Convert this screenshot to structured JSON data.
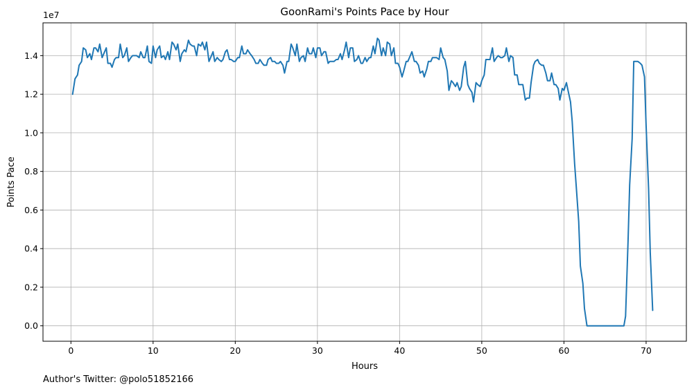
{
  "chart_data": {
    "type": "line",
    "title": "GoonRami's Points Pace by Hour",
    "xlabel": "Hours",
    "ylabel": "Points Pace",
    "offset_text": "1e7",
    "footer": "Author's Twitter: @polo51852166",
    "xlim": [
      -3.4,
      74.9
    ],
    "ylim": [
      -800000,
      15700000
    ],
    "x_ticks": [
      0,
      10,
      20,
      30,
      40,
      50,
      60,
      70
    ],
    "x_tick_labels": [
      "0",
      "10",
      "20",
      "30",
      "40",
      "50",
      "60",
      "70"
    ],
    "y_ticks": [
      0,
      2000000,
      4000000,
      6000000,
      8000000,
      10000000,
      12000000,
      14000000
    ],
    "y_tick_labels": [
      "0.0",
      "0.2",
      "0.4",
      "0.6",
      "0.8",
      "1.0",
      "1.2",
      "1.4"
    ],
    "grid": true,
    "line_color": "#1f77b4",
    "series": [
      {
        "points": [
          [
            0.2,
            12000000
          ],
          [
            0.5,
            12800000
          ],
          [
            0.8,
            13000000
          ],
          [
            1.0,
            13500000
          ],
          [
            1.3,
            13700000
          ],
          [
            1.5,
            14400000
          ],
          [
            1.8,
            14300000
          ],
          [
            2.0,
            13900000
          ],
          [
            2.3,
            14100000
          ],
          [
            2.5,
            13800000
          ],
          [
            2.8,
            14400000
          ],
          [
            3.0,
            14400000
          ],
          [
            3.3,
            14200000
          ],
          [
            3.5,
            14600000
          ],
          [
            3.8,
            13900000
          ],
          [
            4.0,
            14100000
          ],
          [
            4.3,
            14400000
          ],
          [
            4.5,
            13600000
          ],
          [
            4.8,
            13600000
          ],
          [
            5.0,
            13400000
          ],
          [
            5.3,
            13800000
          ],
          [
            5.5,
            13900000
          ],
          [
            5.8,
            13900000
          ],
          [
            6.0,
            14600000
          ],
          [
            6.3,
            13900000
          ],
          [
            6.5,
            14000000
          ],
          [
            6.8,
            14400000
          ],
          [
            7.0,
            13700000
          ],
          [
            7.3,
            13900000
          ],
          [
            7.5,
            14000000
          ],
          [
            8.0,
            14000000
          ],
          [
            8.3,
            13900000
          ],
          [
            8.5,
            14200000
          ],
          [
            8.8,
            13900000
          ],
          [
            9.0,
            13900000
          ],
          [
            9.3,
            14500000
          ],
          [
            9.5,
            13700000
          ],
          [
            9.8,
            13600000
          ],
          [
            10.0,
            14500000
          ],
          [
            10.3,
            13900000
          ],
          [
            10.5,
            14300000
          ],
          [
            10.8,
            14500000
          ],
          [
            11.0,
            13900000
          ],
          [
            11.3,
            14000000
          ],
          [
            11.5,
            13800000
          ],
          [
            11.8,
            14200000
          ],
          [
            12.0,
            13800000
          ],
          [
            12.3,
            14700000
          ],
          [
            12.5,
            14600000
          ],
          [
            12.8,
            14300000
          ],
          [
            13.0,
            14600000
          ],
          [
            13.3,
            13700000
          ],
          [
            13.5,
            14100000
          ],
          [
            13.8,
            14300000
          ],
          [
            14.0,
            14200000
          ],
          [
            14.3,
            14800000
          ],
          [
            14.5,
            14600000
          ],
          [
            14.8,
            14500000
          ],
          [
            15.0,
            14500000
          ],
          [
            15.3,
            14000000
          ],
          [
            15.5,
            14600000
          ],
          [
            15.8,
            14500000
          ],
          [
            16.0,
            14700000
          ],
          [
            16.3,
            14300000
          ],
          [
            16.5,
            14700000
          ],
          [
            16.8,
            13700000
          ],
          [
            17.0,
            13900000
          ],
          [
            17.3,
            14200000
          ],
          [
            17.5,
            13700000
          ],
          [
            17.8,
            13900000
          ],
          [
            18.0,
            13800000
          ],
          [
            18.3,
            13700000
          ],
          [
            18.5,
            13800000
          ],
          [
            18.8,
            14200000
          ],
          [
            19.0,
            14300000
          ],
          [
            19.3,
            13800000
          ],
          [
            19.5,
            13800000
          ],
          [
            19.8,
            13700000
          ],
          [
            20.0,
            13700000
          ],
          [
            20.3,
            13900000
          ],
          [
            20.5,
            13900000
          ],
          [
            20.8,
            14500000
          ],
          [
            21.0,
            14100000
          ],
          [
            21.3,
            14100000
          ],
          [
            21.5,
            14300000
          ],
          [
            21.8,
            14100000
          ],
          [
            22.0,
            14000000
          ],
          [
            22.3,
            13800000
          ],
          [
            22.5,
            13600000
          ],
          [
            22.8,
            13600000
          ],
          [
            23.0,
            13800000
          ],
          [
            23.3,
            13600000
          ],
          [
            23.5,
            13500000
          ],
          [
            23.8,
            13500000
          ],
          [
            24.0,
            13800000
          ],
          [
            24.3,
            13900000
          ],
          [
            24.5,
            13700000
          ],
          [
            24.8,
            13700000
          ],
          [
            25.0,
            13600000
          ],
          [
            25.3,
            13600000
          ],
          [
            25.5,
            13700000
          ],
          [
            25.8,
            13500000
          ],
          [
            26.0,
            13100000
          ],
          [
            26.3,
            13700000
          ],
          [
            26.5,
            13700000
          ],
          [
            26.8,
            14600000
          ],
          [
            27.0,
            14400000
          ],
          [
            27.3,
            14000000
          ],
          [
            27.5,
            14600000
          ],
          [
            27.8,
            13700000
          ],
          [
            28.0,
            13900000
          ],
          [
            28.3,
            14000000
          ],
          [
            28.5,
            13700000
          ],
          [
            28.8,
            14400000
          ],
          [
            29.0,
            14100000
          ],
          [
            29.3,
            14100000
          ],
          [
            29.5,
            14400000
          ],
          [
            29.8,
            13900000
          ],
          [
            30.0,
            14400000
          ],
          [
            30.3,
            14400000
          ],
          [
            30.5,
            14000000
          ],
          [
            30.8,
            14200000
          ],
          [
            31.0,
            14200000
          ],
          [
            31.3,
            13600000
          ],
          [
            31.5,
            13700000
          ],
          [
            31.8,
            13700000
          ],
          [
            32.0,
            13700000
          ],
          [
            32.3,
            13800000
          ],
          [
            32.5,
            13800000
          ],
          [
            32.8,
            14100000
          ],
          [
            33.0,
            13800000
          ],
          [
            33.3,
            14300000
          ],
          [
            33.5,
            14700000
          ],
          [
            33.8,
            13900000
          ],
          [
            34.0,
            14400000
          ],
          [
            34.3,
            14400000
          ],
          [
            34.5,
            13700000
          ],
          [
            34.8,
            13800000
          ],
          [
            35.0,
            14000000
          ],
          [
            35.3,
            13600000
          ],
          [
            35.5,
            13600000
          ],
          [
            35.8,
            13900000
          ],
          [
            36.0,
            13700000
          ],
          [
            36.3,
            13900000
          ],
          [
            36.5,
            13900000
          ],
          [
            36.8,
            14500000
          ],
          [
            37.0,
            14100000
          ],
          [
            37.3,
            14900000
          ],
          [
            37.5,
            14800000
          ],
          [
            37.8,
            14000000
          ],
          [
            38.0,
            14400000
          ],
          [
            38.3,
            14000000
          ],
          [
            38.5,
            14700000
          ],
          [
            38.8,
            14600000
          ],
          [
            39.0,
            14000000
          ],
          [
            39.3,
            14400000
          ],
          [
            39.5,
            13600000
          ],
          [
            39.8,
            13600000
          ],
          [
            40.0,
            13400000
          ],
          [
            40.3,
            12900000
          ],
          [
            40.5,
            13200000
          ],
          [
            40.8,
            13700000
          ],
          [
            41.0,
            13700000
          ],
          [
            41.3,
            14000000
          ],
          [
            41.5,
            14200000
          ],
          [
            41.8,
            13700000
          ],
          [
            42.0,
            13700000
          ],
          [
            42.3,
            13500000
          ],
          [
            42.5,
            13100000
          ],
          [
            42.8,
            13200000
          ],
          [
            43.0,
            12900000
          ],
          [
            43.3,
            13300000
          ],
          [
            43.5,
            13700000
          ],
          [
            43.8,
            13700000
          ],
          [
            44.0,
            13900000
          ],
          [
            44.3,
            13900000
          ],
          [
            44.5,
            13900000
          ],
          [
            44.8,
            13800000
          ],
          [
            45.0,
            14400000
          ],
          [
            45.3,
            13900000
          ],
          [
            45.5,
            13800000
          ],
          [
            45.8,
            13200000
          ],
          [
            46.0,
            12200000
          ],
          [
            46.3,
            12700000
          ],
          [
            46.5,
            12600000
          ],
          [
            46.8,
            12400000
          ],
          [
            47.0,
            12600000
          ],
          [
            47.3,
            12200000
          ],
          [
            47.5,
            12400000
          ],
          [
            47.8,
            13400000
          ],
          [
            48.0,
            13700000
          ],
          [
            48.3,
            12500000
          ],
          [
            48.5,
            12300000
          ],
          [
            48.8,
            12100000
          ],
          [
            49.0,
            11600000
          ],
          [
            49.3,
            12600000
          ],
          [
            49.5,
            12500000
          ],
          [
            49.8,
            12400000
          ],
          [
            50.0,
            12700000
          ],
          [
            50.3,
            13000000
          ],
          [
            50.5,
            13800000
          ],
          [
            50.8,
            13800000
          ],
          [
            51.0,
            13800000
          ],
          [
            51.3,
            14400000
          ],
          [
            51.5,
            13700000
          ],
          [
            51.8,
            13900000
          ],
          [
            52.0,
            14000000
          ],
          [
            52.3,
            13900000
          ],
          [
            52.5,
            13900000
          ],
          [
            52.8,
            14000000
          ],
          [
            53.0,
            14400000
          ],
          [
            53.3,
            13700000
          ],
          [
            53.5,
            14000000
          ],
          [
            53.8,
            13900000
          ],
          [
            54.0,
            13000000
          ],
          [
            54.3,
            13000000
          ],
          [
            54.5,
            12500000
          ],
          [
            54.8,
            12500000
          ],
          [
            55.0,
            12500000
          ],
          [
            55.3,
            11700000
          ],
          [
            55.5,
            11800000
          ],
          [
            55.8,
            11800000
          ],
          [
            56.0,
            12600000
          ],
          [
            56.3,
            13500000
          ],
          [
            56.5,
            13700000
          ],
          [
            56.8,
            13800000
          ],
          [
            57.0,
            13600000
          ],
          [
            57.3,
            13500000
          ],
          [
            57.5,
            13500000
          ],
          [
            57.8,
            13100000
          ],
          [
            58.0,
            12700000
          ],
          [
            58.3,
            12700000
          ],
          [
            58.5,
            13100000
          ],
          [
            58.8,
            12500000
          ],
          [
            59.0,
            12500000
          ],
          [
            59.3,
            12300000
          ],
          [
            59.5,
            11700000
          ],
          [
            59.8,
            12300000
          ],
          [
            60.0,
            12200000
          ],
          [
            60.3,
            12600000
          ],
          [
            60.5,
            12200000
          ],
          [
            60.8,
            11600000
          ],
          [
            61.0,
            10600000
          ],
          [
            61.3,
            8400000
          ],
          [
            61.5,
            7200000
          ],
          [
            61.8,
            5400000
          ],
          [
            62.0,
            3100000
          ],
          [
            62.3,
            2200000
          ],
          [
            62.5,
            900000
          ],
          [
            62.8,
            0
          ],
          [
            63.0,
            0
          ],
          [
            64.0,
            0
          ],
          [
            65.0,
            0
          ],
          [
            66.0,
            0
          ],
          [
            67.0,
            0
          ],
          [
            67.3,
            0
          ],
          [
            67.5,
            500000
          ],
          [
            67.8,
            4400000
          ],
          [
            68.0,
            7300000
          ],
          [
            68.3,
            9700000
          ],
          [
            68.5,
            13700000
          ],
          [
            68.8,
            13700000
          ],
          [
            69.0,
            13700000
          ],
          [
            69.3,
            13600000
          ],
          [
            69.5,
            13500000
          ],
          [
            69.8,
            12900000
          ],
          [
            70.0,
            10400000
          ],
          [
            70.3,
            7100000
          ],
          [
            70.5,
            3800000
          ],
          [
            70.8,
            800000
          ]
        ]
      }
    ]
  }
}
